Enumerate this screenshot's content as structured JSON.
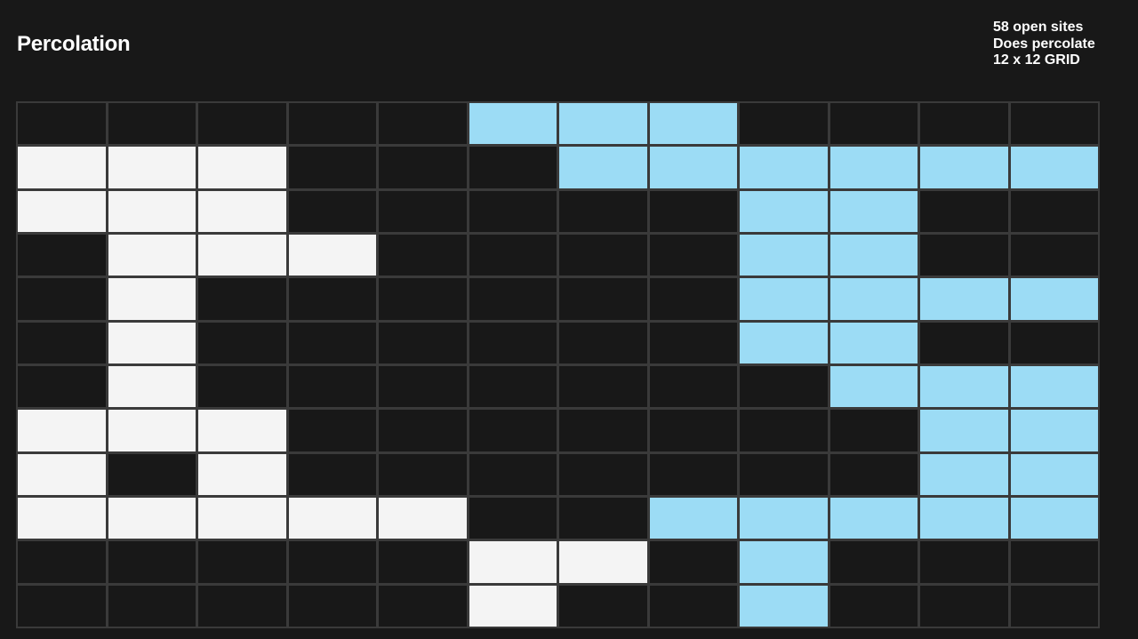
{
  "header": {
    "title": "Percolation"
  },
  "stats": {
    "open_sites": "58 open sites",
    "percolation_status": "Does percolate",
    "grid_size": "12 x 12 GRID"
  },
  "grid": {
    "rows": 12,
    "cols": 12,
    "legend": {
      "B": "blocked",
      "O": "open",
      "F": "full"
    },
    "cells": [
      "BBBBBFFFBBBB",
      "OOOBBBFFFFFF",
      "OOOBBBBBFFBB",
      "BOOOBBBBFFBB",
      "BOBBBBBBFFFF",
      "BOBBBBBBFFBB",
      "BOBBBBBBBFFF",
      "OOOBBBBBBBFF",
      "OBOBBBBBBBFF",
      "OOOOOBBFFFFF",
      "BBBBBOOBFBBB",
      "BBBBBOBBFBBB"
    ]
  },
  "colors": {
    "background": "#181818",
    "grid_line": "#3a3a3a",
    "blocked": "#181818",
    "open": "#f4f4f4",
    "full": "#9cdcf5",
    "text": "#ffffff"
  }
}
